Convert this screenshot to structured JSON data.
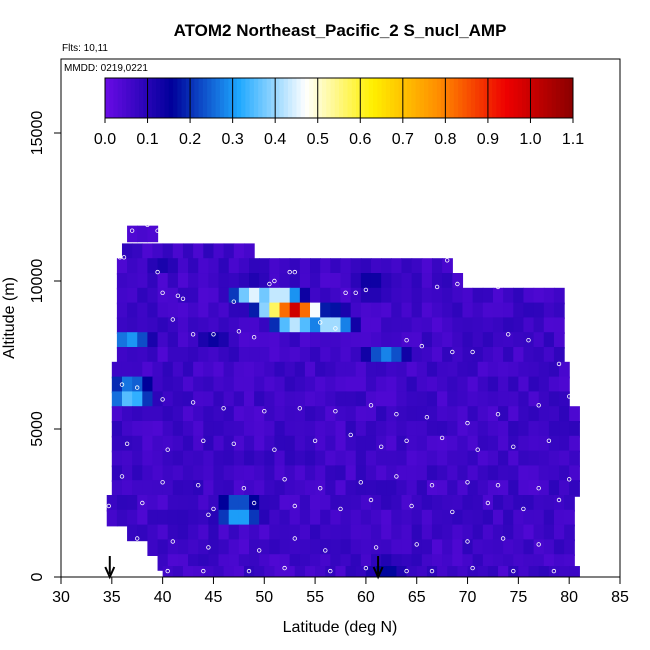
{
  "chart_data": {
    "type": "heatmap",
    "title": "ATOM2 Northeast_Pacific_2 S_nucl_AMP",
    "annotations": [
      "Flts: 10,11",
      "MMDD: 0219,0221"
    ],
    "xlabel": "Latitude (deg N)",
    "ylabel": "Altitude (m)",
    "xlim": [
      30,
      85
    ],
    "ylim": [
      0,
      17500
    ],
    "x_ticks": [
      30,
      35,
      40,
      45,
      50,
      55,
      60,
      65,
      70,
      75,
      80,
      85
    ],
    "y_ticks": [
      0,
      5000,
      10000,
      15000
    ],
    "colorbar": {
      "range": [
        0.0,
        1.1
      ],
      "ticks": [
        "0.0",
        "0.1",
        "0.2",
        "0.3",
        "0.4",
        "0.5",
        "0.6",
        "0.7",
        "0.8",
        "0.9",
        "1.0",
        "1.1"
      ],
      "colors": [
        "#6a0be6",
        "#00009a",
        "#1ea8ff",
        "#ffffff",
        "#fff000",
        "#ff8c00",
        "#ee0000",
        "#8b0000"
      ]
    },
    "grid": false,
    "arrows_at_latitude": [
      34.8,
      61.2
    ],
    "base_value": 0.04,
    "hotspots": [
      {
        "lat": 53.0,
        "alt": 8900,
        "value": 1.05
      },
      {
        "lat": 51.5,
        "alt": 9200,
        "value": 0.75
      },
      {
        "lat": 49.0,
        "alt": 9500,
        "value": 0.45
      },
      {
        "lat": 56.5,
        "alt": 8600,
        "value": 0.45
      },
      {
        "lat": 36.8,
        "alt": 6200,
        "value": 0.45
      },
      {
        "lat": 36.8,
        "alt": 8000,
        "value": 0.3
      },
      {
        "lat": 47.5,
        "alt": 2200,
        "value": 0.4
      },
      {
        "lat": 60.5,
        "alt": 9800,
        "value": 0.18
      },
      {
        "lat": 62.0,
        "alt": 7500,
        "value": 0.28
      },
      {
        "lat": 62.0,
        "alt": 200,
        "value": 0.18
      },
      {
        "lat": 45.0,
        "alt": 8100,
        "value": 0.15
      },
      {
        "lat": 40.0,
        "alt": 10500,
        "value": 0.12
      },
      {
        "lat": 42.0,
        "alt": 3200,
        "value": 0.1
      }
    ],
    "altitude_bands": [
      {
        "alt": 11600,
        "lat_min": 36.5,
        "lat_max": 39.5
      },
      {
        "alt": 11000,
        "lat_min": 36.0,
        "lat_max": 49.0
      },
      {
        "alt": 10500,
        "lat_min": 35.5,
        "lat_max": 68.5
      },
      {
        "alt": 10000,
        "lat_min": 35.5,
        "lat_max": 69.5
      },
      {
        "alt": 9500,
        "lat_min": 35.5,
        "lat_max": 79.5
      },
      {
        "alt": 9000,
        "lat_min": 35.5,
        "lat_max": 79.5
      },
      {
        "alt": 8500,
        "lat_min": 35.5,
        "lat_max": 79.5
      },
      {
        "alt": 8000,
        "lat_min": 35.5,
        "lat_max": 79.5
      },
      {
        "alt": 7500,
        "lat_min": 35.5,
        "lat_max": 79.5
      },
      {
        "alt": 7000,
        "lat_min": 35.0,
        "lat_max": 80.0
      },
      {
        "alt": 6500,
        "lat_min": 35.0,
        "lat_max": 80.0
      },
      {
        "alt": 6000,
        "lat_min": 35.0,
        "lat_max": 80.0
      },
      {
        "alt": 5500,
        "lat_min": 35.0,
        "lat_max": 80.5
      },
      {
        "alt": 5000,
        "lat_min": 35.0,
        "lat_max": 80.5
      },
      {
        "alt": 4500,
        "lat_min": 35.0,
        "lat_max": 80.5
      },
      {
        "alt": 4000,
        "lat_min": 35.0,
        "lat_max": 80.5
      },
      {
        "alt": 3500,
        "lat_min": 35.0,
        "lat_max": 80.5
      },
      {
        "alt": 3000,
        "lat_min": 35.0,
        "lat_max": 80.5
      },
      {
        "alt": 2500,
        "lat_min": 34.5,
        "lat_max": 80.5
      },
      {
        "alt": 2000,
        "lat_min": 34.5,
        "lat_max": 80.5
      },
      {
        "alt": 1500,
        "lat_min": 36.5,
        "lat_max": 80.5
      },
      {
        "alt": 1000,
        "lat_min": 38.5,
        "lat_max": 80.5
      },
      {
        "alt": 500,
        "lat_min": 39.5,
        "lat_max": 80.5
      },
      {
        "alt": 100,
        "lat_min": 40.0,
        "lat_max": 80.5
      }
    ],
    "sample_points": [
      [
        37.0,
        11700
      ],
      [
        38.5,
        11900
      ],
      [
        39.5,
        11700
      ],
      [
        35.8,
        10800
      ],
      [
        36.2,
        10800
      ],
      [
        39.5,
        10300
      ],
      [
        40.0,
        9600
      ],
      [
        41.5,
        9500
      ],
      [
        42.0,
        9400
      ],
      [
        47.0,
        9300
      ],
      [
        50.5,
        9900
      ],
      [
        51.0,
        10000
      ],
      [
        52.5,
        10300
      ],
      [
        53.0,
        10300
      ],
      [
        58.0,
        9600
      ],
      [
        59.0,
        9600
      ],
      [
        60.0,
        9700
      ],
      [
        67.0,
        9800
      ],
      [
        68.0,
        10700
      ],
      [
        69.0,
        9900
      ],
      [
        73.0,
        9800
      ],
      [
        75.5,
        10100
      ],
      [
        76.5,
        9900
      ],
      [
        77.5,
        10100
      ],
      [
        41.0,
        8700
      ],
      [
        43.0,
        8200
      ],
      [
        45.0,
        8200
      ],
      [
        47.5,
        8300
      ],
      [
        49.0,
        8100
      ],
      [
        55.5,
        8600
      ],
      [
        57.0,
        8400
      ],
      [
        64.0,
        8000
      ],
      [
        65.5,
        7800
      ],
      [
        68.5,
        7600
      ],
      [
        70.5,
        7600
      ],
      [
        74.0,
        8200
      ],
      [
        76.0,
        8000
      ],
      [
        79.0,
        7200
      ],
      [
        36.0,
        6500
      ],
      [
        37.5,
        6400
      ],
      [
        40.0,
        6000
      ],
      [
        43.0,
        5900
      ],
      [
        46.0,
        5700
      ],
      [
        50.0,
        5600
      ],
      [
        53.5,
        5700
      ],
      [
        57.0,
        5600
      ],
      [
        60.5,
        5800
      ],
      [
        63.0,
        5500
      ],
      [
        66.0,
        5400
      ],
      [
        70.0,
        5200
      ],
      [
        73.0,
        5500
      ],
      [
        77.0,
        5800
      ],
      [
        80.0,
        6100
      ],
      [
        36.5,
        4500
      ],
      [
        40.5,
        4300
      ],
      [
        44.0,
        4600
      ],
      [
        47.0,
        4500
      ],
      [
        51.0,
        4300
      ],
      [
        55.0,
        4600
      ],
      [
        58.5,
        4800
      ],
      [
        61.5,
        4400
      ],
      [
        64.0,
        4600
      ],
      [
        67.5,
        4700
      ],
      [
        71.0,
        4300
      ],
      [
        74.5,
        4400
      ],
      [
        78.0,
        4600
      ],
      [
        36.0,
        3400
      ],
      [
        40.0,
        3200
      ],
      [
        43.5,
        3100
      ],
      [
        48.0,
        3000
      ],
      [
        52.0,
        3300
      ],
      [
        55.5,
        3000
      ],
      [
        59.5,
        3200
      ],
      [
        63.0,
        3400
      ],
      [
        66.5,
        3100
      ],
      [
        70.0,
        3200
      ],
      [
        73.0,
        3100
      ],
      [
        77.0,
        3000
      ],
      [
        80.0,
        3300
      ],
      [
        34.7,
        2400
      ],
      [
        38.0,
        2500
      ],
      [
        44.5,
        2100
      ],
      [
        45.0,
        2300
      ],
      [
        49.0,
        2500
      ],
      [
        53.0,
        2400
      ],
      [
        57.5,
        2300
      ],
      [
        60.5,
        2600
      ],
      [
        64.5,
        2400
      ],
      [
        68.5,
        2200
      ],
      [
        72.0,
        2500
      ],
      [
        75.5,
        2300
      ],
      [
        79.0,
        2600
      ],
      [
        37.5,
        1300
      ],
      [
        41.0,
        1200
      ],
      [
        44.5,
        1000
      ],
      [
        49.5,
        900
      ],
      [
        53.0,
        1300
      ],
      [
        56.0,
        900
      ],
      [
        61.0,
        1000
      ],
      [
        65.0,
        1100
      ],
      [
        70.0,
        1200
      ],
      [
        73.5,
        1300
      ],
      [
        77.0,
        1100
      ],
      [
        40.5,
        200
      ],
      [
        44.0,
        200
      ],
      [
        48.5,
        200
      ],
      [
        52.0,
        300
      ],
      [
        56.5,
        200
      ],
      [
        60.0,
        300
      ],
      [
        64.0,
        200
      ],
      [
        66.5,
        200
      ],
      [
        70.5,
        300
      ],
      [
        74.5,
        200
      ],
      [
        78.5,
        200
      ]
    ]
  }
}
